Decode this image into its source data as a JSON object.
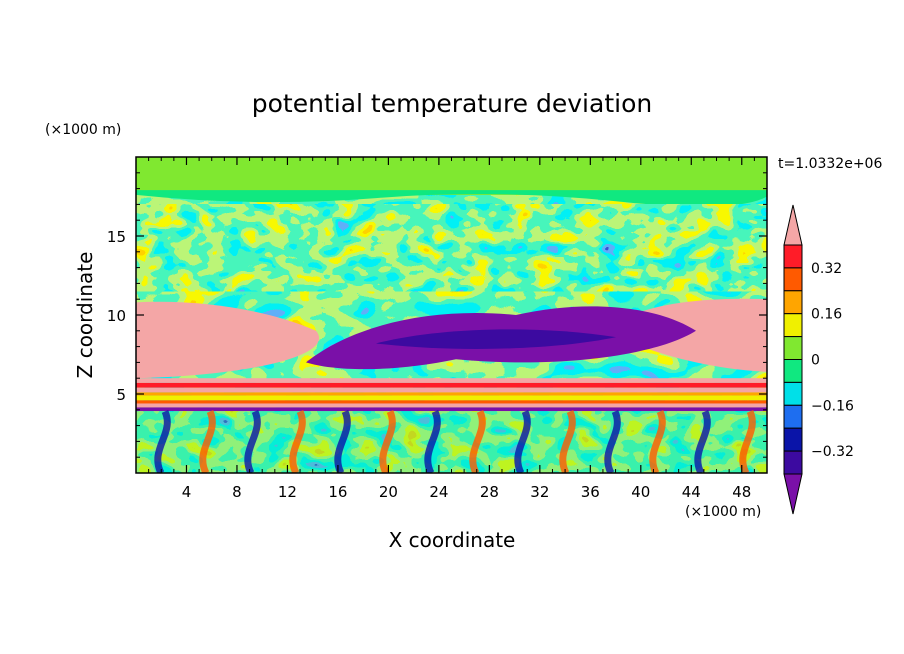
{
  "chart_data": {
    "type": "heatmap",
    "title": "potential temperature deviation",
    "xlabel": "X coordinate",
    "ylabel": "Z coordinate",
    "x_unit": "(×1000 m)",
    "y_unit": "(×1000 m)",
    "time_label": "t=1.0332e+06",
    "xlim": [
      0,
      50
    ],
    "ylim": [
      0,
      20
    ],
    "x_ticks": [
      "4",
      "8",
      "12",
      "16",
      "20",
      "24",
      "28",
      "32",
      "36",
      "40",
      "44",
      "48"
    ],
    "y_ticks": [
      "5",
      "10",
      "15"
    ],
    "colorbar": {
      "levels": [
        -0.4,
        -0.32,
        -0.24,
        -0.16,
        -0.08,
        0,
        0.08,
        0.16,
        0.24,
        0.32,
        0.4
      ],
      "colors": [
        "#7a10a8",
        "#3c0aa0",
        "#0a14a8",
        "#1e6ef0",
        "#00e0e8",
        "#10e880",
        "#80e830",
        "#f0f000",
        "#ffa500",
        "#ff5a00",
        "#ff1c28",
        "#f4a6a6"
      ],
      "labels": [
        "0.32",
        "0.16",
        "0",
        "−0.16",
        "−0.32"
      ],
      "label_values": [
        0.32,
        0.16,
        0,
        -0.16,
        -0.32
      ]
    },
    "layers": [
      {
        "z": [
          0,
          4
        ],
        "description_level": "mixed convective cells"
      },
      {
        "z": [
          4,
          6
        ],
        "description_level": "strong positive band"
      },
      {
        "z": [
          6,
          11
        ],
        "description_level": "positive left/right, negative center"
      },
      {
        "z": [
          11,
          17
        ],
        "description_level": "turbulent mixed"
      },
      {
        "z": [
          17,
          20
        ],
        "description_level": "near zero"
      }
    ]
  }
}
